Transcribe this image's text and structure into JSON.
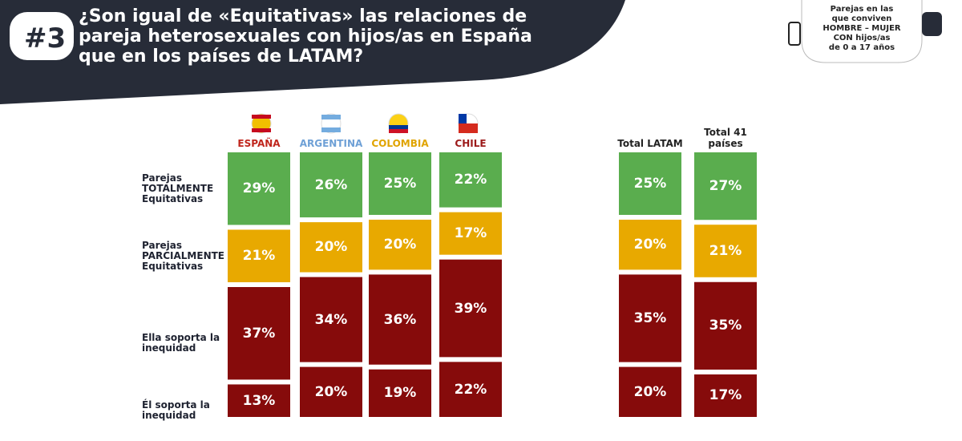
{
  "header": {
    "badge": "#3",
    "title_lines": [
      "¿Son igual de «Equitativas» las relaciones de",
      "pareja heterosexuales con hijos/as en España",
      "que en los países de LATAM?"
    ],
    "note_lines": [
      "Parejas en las",
      "que conviven",
      "HOMBRE – MUJER",
      "CON hijos/as",
      "de 0 a 17 años"
    ]
  },
  "chart_data": {
    "type": "stacked_bar",
    "categories": [
      "ESPAÑA",
      "ARGENTINA",
      "COLOMBIA",
      "CHILE",
      "Total LATAM",
      "Total 41 países"
    ],
    "category_colors": [
      "#c0261d",
      "#6ea0d6",
      "#e0a400",
      "#9c1a1a",
      "#222222",
      "#222222"
    ],
    "series": [
      {
        "name": "Parejas TOTALMENTE Equitativas",
        "color": "#5aad4e",
        "values": [
          29,
          26,
          25,
          22,
          25,
          27
        ],
        "value_labels": [
          "29%",
          "26%",
          "25%",
          "22%",
          "25%",
          "27%"
        ]
      },
      {
        "name": "Parejas PARCIALMENTE Equitativas",
        "color": "#e8a900",
        "values": [
          21,
          20,
          20,
          17,
          20,
          21
        ],
        "value_labels": [
          "21%",
          "20%",
          "20%",
          "17%",
          "20%",
          "21%"
        ]
      },
      {
        "name": "Ella soporta la inequidad",
        "color": "#860b0b",
        "values": [
          37,
          34,
          36,
          39,
          35,
          35
        ],
        "value_labels": [
          "37%",
          "34%",
          "36%",
          "39%",
          "35%",
          "35%"
        ]
      },
      {
        "name": "Él soporta la inequidad",
        "color": "#860b0b",
        "values": [
          13,
          20,
          19,
          22,
          20,
          17
        ],
        "value_labels": [
          "13%",
          "20%",
          "19%",
          "22%",
          "20%",
          "17%"
        ]
      }
    ]
  }
}
